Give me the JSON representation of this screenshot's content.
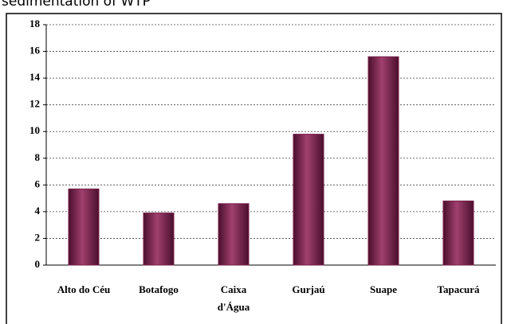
{
  "caption": "sedimentation of WTP",
  "chart_data": {
    "type": "bar",
    "categories": [
      "Alto do Céu",
      "Botafogo",
      [
        "Caixa",
        "d'Água"
      ],
      "Gurjaú",
      "Suape",
      "Tapacurá"
    ],
    "values": [
      5.7,
      3.9,
      4.6,
      9.8,
      15.6,
      4.8
    ],
    "color": "#7a1f4a",
    "ylim": [
      0,
      18
    ],
    "yticks": [
      0,
      2,
      4,
      6,
      8,
      10,
      12,
      14,
      16,
      18
    ],
    "grid": true
  }
}
